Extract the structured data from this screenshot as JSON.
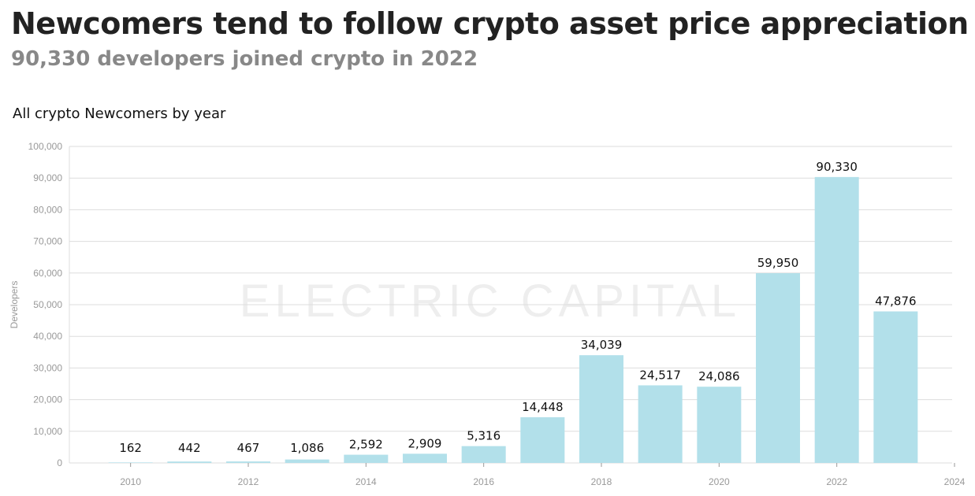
{
  "title": "Newcomers tend to follow crypto asset price appreciation",
  "subtitle": "90,330 developers joined crypto in 2022",
  "watermark": "ELECTRIC CAPITAL",
  "colors": {
    "bar": "#b2e0ea",
    "grid": "#dddddd",
    "title": "#222222",
    "subtitle": "#888888"
  },
  "chart_data": {
    "type": "bar",
    "title": "All crypto Newcomers by year",
    "xlabel": "",
    "ylabel": "Developers",
    "categories": [
      2010,
      2011,
      2012,
      2013,
      2014,
      2015,
      2016,
      2017,
      2018,
      2019,
      2020,
      2021,
      2022,
      2023
    ],
    "values": [
      162,
      442,
      467,
      1086,
      2592,
      2909,
      5316,
      14448,
      34039,
      24517,
      24086,
      59950,
      90330,
      47876
    ],
    "data_labels": [
      "162",
      "442",
      "467",
      "1,086",
      "2,592",
      "2,909",
      "5,316",
      "14,448",
      "34,039",
      "24,517",
      "24,086",
      "59,950",
      "90,330",
      "47,876"
    ],
    "xlim": [
      2009,
      2024
    ],
    "ylim": [
      0,
      100000
    ],
    "xticks": [
      "2010",
      "2012",
      "2014",
      "2016",
      "2018",
      "2020",
      "2022",
      "2024"
    ],
    "yticks": [
      "0",
      "10,000",
      "20,000",
      "30,000",
      "40,000",
      "50,000",
      "60,000",
      "70,000",
      "80,000",
      "90,000",
      "100,000"
    ],
    "grid": true,
    "legend": "none"
  }
}
